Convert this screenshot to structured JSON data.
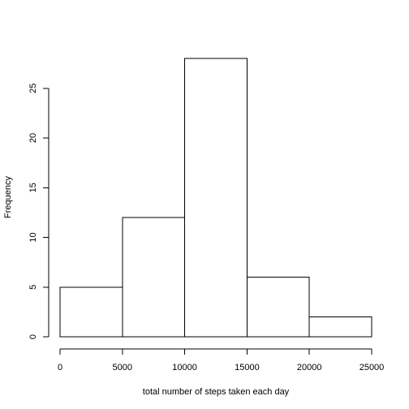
{
  "chart_data": {
    "type": "bar",
    "title": "",
    "xlabel": "total number of steps taken each day",
    "ylabel": "Frequency",
    "bins": [
      {
        "start": 0,
        "end": 5000,
        "count": 5
      },
      {
        "start": 5000,
        "end": 10000,
        "count": 12
      },
      {
        "start": 10000,
        "end": 15000,
        "count": 28
      },
      {
        "start": 15000,
        "end": 20000,
        "count": 6
      },
      {
        "start": 20000,
        "end": 25000,
        "count": 2
      }
    ],
    "xticks": [
      0,
      5000,
      10000,
      15000,
      20000,
      25000
    ],
    "yticks": [
      0,
      5,
      10,
      15,
      20,
      25
    ],
    "xlim": [
      0,
      25000
    ],
    "ylim": [
      0,
      28
    ],
    "grid": false,
    "legend": "none",
    "bar_fill": "#ffffff",
    "bar_stroke": "#000000"
  }
}
